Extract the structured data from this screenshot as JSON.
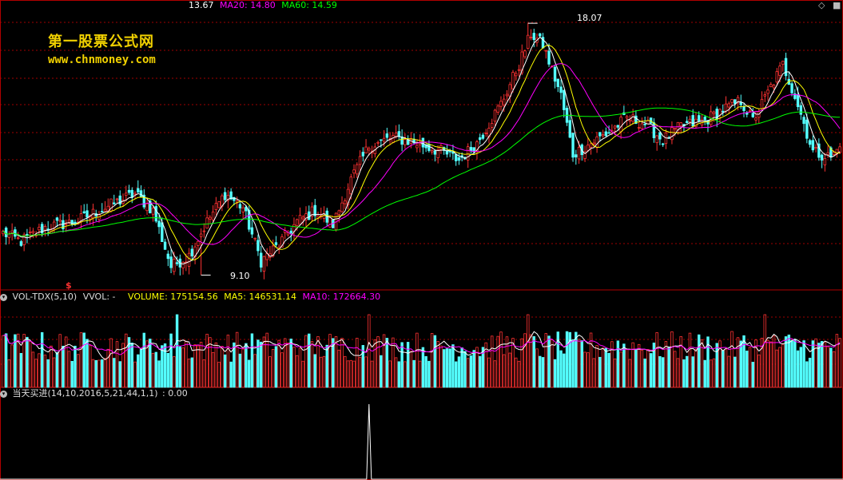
{
  "main_header": {
    "price": "13.67",
    "ma20_label": "MA20: 14.80",
    "ma60_label": "MA60: 14.59"
  },
  "watermark": {
    "line1": "第一股票公式网",
    "line2": "www.chnmoney.com"
  },
  "vol_header": {
    "name": "VOL-TDX(5,10)",
    "vvol": "VVOL: -",
    "volume": "VOLUME: 175154.56",
    "ma5": "MA5: 146531.14",
    "ma10": "MA10: 172664.30"
  },
  "signal_header": {
    "name": "当天买进(14,10,2016,5,21,44,1,1)",
    "value": ": 0.00"
  },
  "annotations": {
    "high_label": "18.07",
    "low_label": "9.10",
    "marker": "$"
  },
  "colors": {
    "up": "#ff3232",
    "down": "#54ffff",
    "ma5": "#ffffff",
    "ma10": "#ffff00",
    "ma20": "#ff00ff",
    "ma60": "#00ff00",
    "grid": "#a00000",
    "border": "#b00000",
    "watermark": "#f0d000"
  },
  "chart_data": [
    {
      "type": "candlestick",
      "name": "price",
      "anchors": [
        [
          0,
          10.6
        ],
        [
          6,
          10.3
        ],
        [
          14,
          10.8
        ],
        [
          24,
          11.0
        ],
        [
          34,
          11.5
        ],
        [
          44,
          12.0
        ],
        [
          50,
          11.4
        ],
        [
          56,
          9.4
        ],
        [
          62,
          9.8
        ],
        [
          68,
          11.0
        ],
        [
          74,
          12.0
        ],
        [
          80,
          11.5
        ],
        [
          86,
          9.6
        ],
        [
          92,
          10.2
        ],
        [
          98,
          11.0
        ],
        [
          104,
          11.4
        ],
        [
          110,
          10.9
        ],
        [
          116,
          12.5
        ],
        [
          122,
          13.7
        ],
        [
          130,
          14.0
        ],
        [
          138,
          13.8
        ],
        [
          146,
          13.5
        ],
        [
          152,
          13.2
        ],
        [
          158,
          13.8
        ],
        [
          166,
          15.2
        ],
        [
          172,
          16.6
        ],
        [
          176,
          17.7
        ],
        [
          180,
          17.3
        ],
        [
          186,
          15.5
        ],
        [
          190,
          13.4
        ],
        [
          196,
          13.8
        ],
        [
          202,
          14.2
        ],
        [
          208,
          14.7
        ],
        [
          214,
          14.5
        ],
        [
          220,
          13.9
        ],
        [
          226,
          14.4
        ],
        [
          234,
          14.6
        ],
        [
          240,
          15.0
        ],
        [
          246,
          15.3
        ],
        [
          250,
          14.6
        ],
        [
          256,
          15.8
        ],
        [
          260,
          16.6
        ],
        [
          264,
          15.5
        ],
        [
          270,
          13.5
        ],
        [
          276,
          13.3
        ],
        [
          279,
          13.67
        ]
      ],
      "high": 18.07,
      "low": 9.1,
      "ma20_last": 14.8,
      "ma60_last": 14.59,
      "close_last": 13.67
    },
    {
      "type": "bar",
      "name": "volume",
      "ylim": [
        0,
        300000
      ],
      "volume_last": 175154.56,
      "ma5_last": 146531.14,
      "ma10_last": 172664.3
    },
    {
      "type": "line",
      "name": "signal",
      "spike_index": 122,
      "spike_value": 1,
      "value_last": 0.0
    }
  ]
}
